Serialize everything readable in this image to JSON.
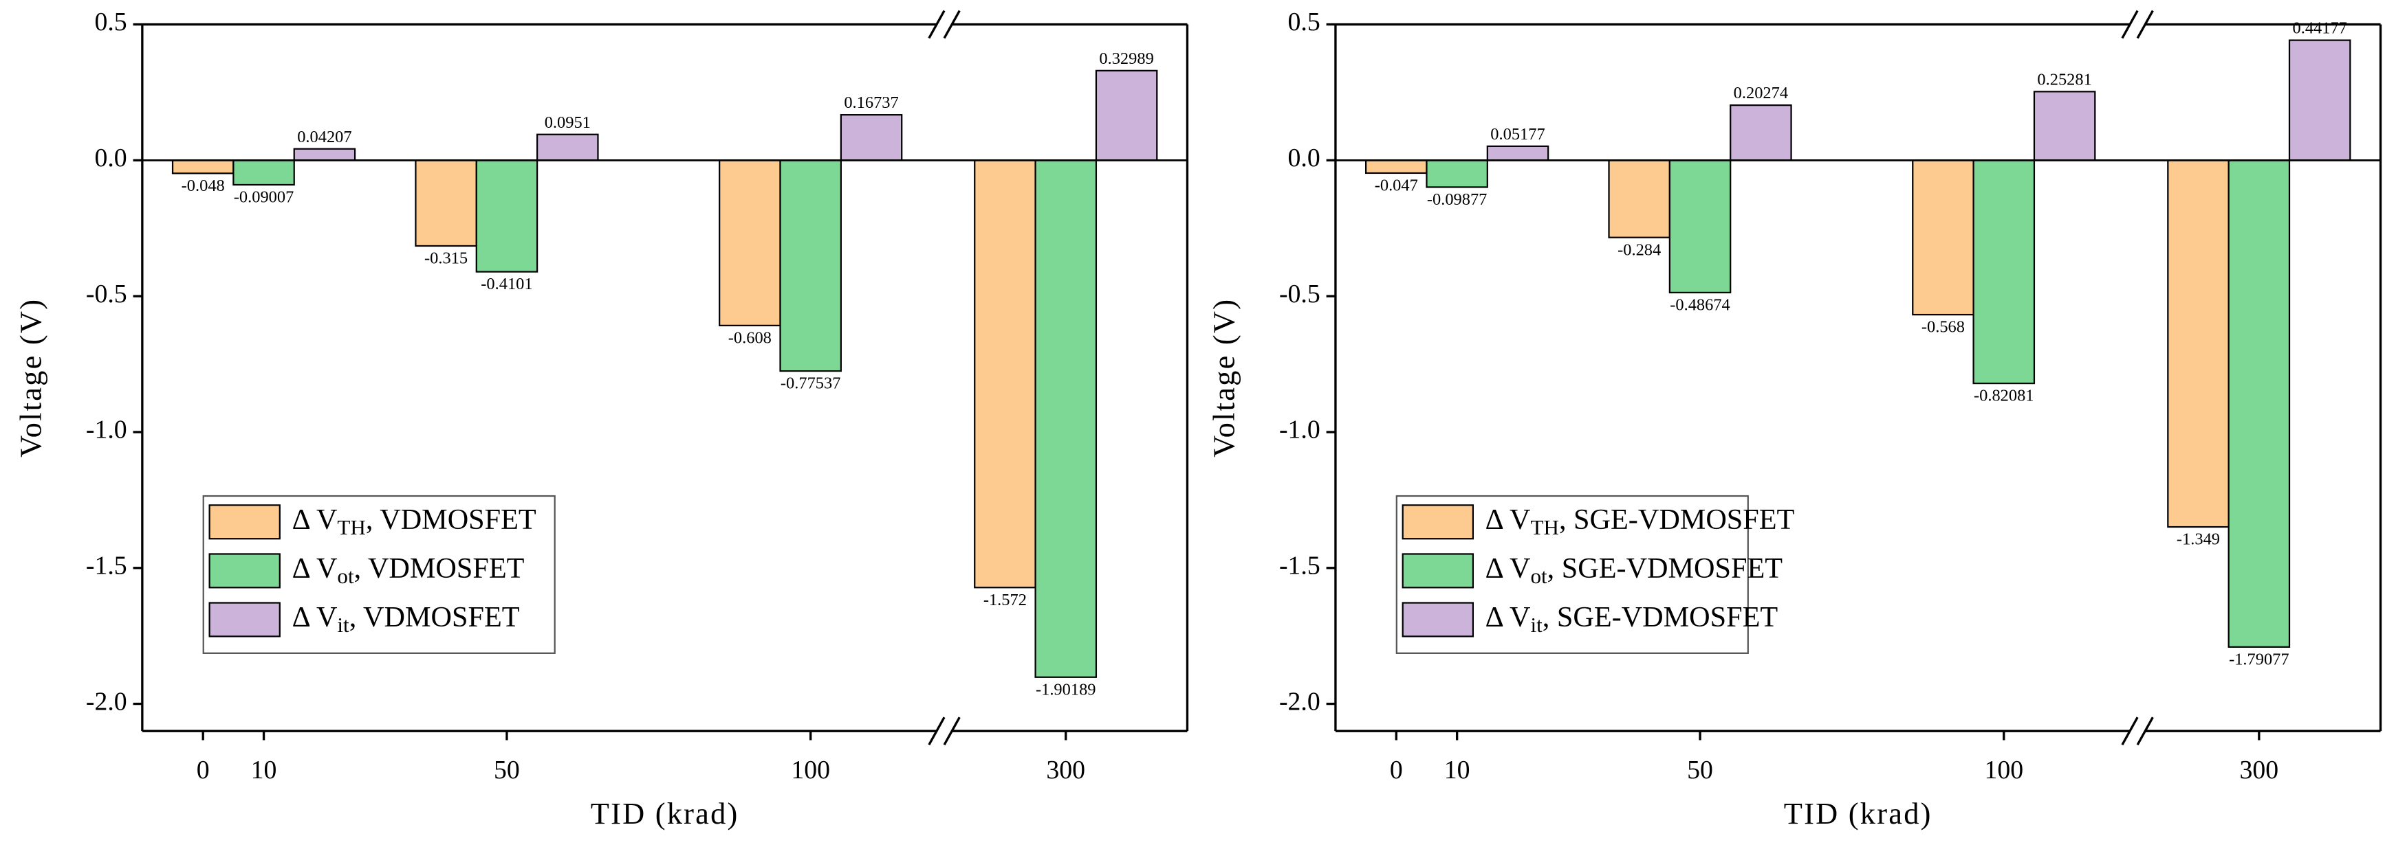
{
  "chart_data": [
    {
      "type": "bar",
      "xlabel": "TID (krad)",
      "ylabel": "Voltage (V)",
      "x": [
        10,
        50,
        100,
        300
      ],
      "series": [
        {
          "name": "Δ VTH, VDMOSFET",
          "color": "#fdcb8f",
          "values": [
            -0.048,
            -0.315,
            -0.608,
            -1.572
          ]
        },
        {
          "name": "Δ Vot, VDMOSFET",
          "color": "#7dd895",
          "values": [
            -0.09007,
            -0.4101,
            -0.77537,
            -1.90189
          ]
        },
        {
          "name": "Δ Vit, VDMOSFET",
          "color": "#cbb3d9",
          "values": [
            0.04207,
            0.0951,
            0.16737,
            0.32989
          ]
        }
      ],
      "xlim": [
        -10,
        320
      ],
      "xbreak": [
        122,
        280
      ],
      "xticks": [
        0,
        10,
        50,
        100,
        300
      ],
      "ylim": [
        -2.1,
        0.5
      ],
      "yticks": [
        {
          "value": -2.0,
          "label": "-2.0"
        },
        -1.5,
        {
          "value": -1.0,
          "label": "-1.0"
        },
        -0.5,
        {
          "value": 0.0,
          "label": "0.0"
        },
        0.5
      ],
      "legend": "lower left"
    },
    {
      "type": "bar",
      "xlabel": "TID (krad)",
      "ylabel": "Voltage (V)",
      "x": [
        10,
        50,
        100,
        300
      ],
      "series": [
        {
          "name": "Δ VTH, SGE-VDMOSFET",
          "color": "#fdcb8f",
          "values": [
            -0.047,
            -0.284,
            -0.568,
            -1.349
          ]
        },
        {
          "name": "Δ Vot, SGE-VDMOSFET",
          "color": "#7dd895",
          "values": [
            -0.09877,
            -0.48674,
            -0.82081,
            -1.79077
          ]
        },
        {
          "name": "Δ Vit, SGE-VDMOSFET",
          "color": "#cbb3d9",
          "values": [
            0.05177,
            0.20274,
            0.25281,
            0.44177
          ]
        }
      ],
      "xlim": [
        -10,
        320
      ],
      "xbreak": [
        122,
        280
      ],
      "xticks": [
        0,
        10,
        50,
        100,
        300
      ],
      "ylim": [
        -2.1,
        0.5
      ],
      "yticks": [
        {
          "value": -2.0,
          "label": "-2.0"
        },
        -1.5,
        {
          "value": -1.0,
          "label": "-1.0"
        },
        -0.5,
        {
          "value": 0.0,
          "label": "0.0"
        },
        0.5
      ],
      "legend": "lower left"
    }
  ]
}
